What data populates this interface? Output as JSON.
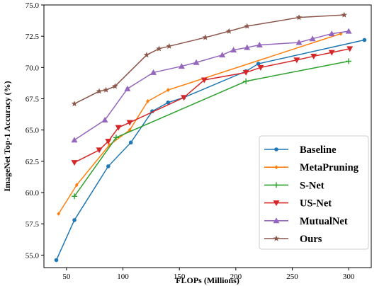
{
  "chart_data": {
    "type": "line",
    "xlabel": "FLOPs (Millions)",
    "ylabel": "ImageNet Top-1 Accuracy (%)",
    "xlim": [
      30,
      320
    ],
    "ylim": [
      54.0,
      75.0
    ],
    "xticks": [
      50,
      100,
      150,
      200,
      250,
      300
    ],
    "yticks": [
      55.0,
      57.5,
      60.0,
      62.5,
      65.0,
      67.5,
      70.0,
      72.5,
      75.0
    ],
    "xtick_labels": [
      "50",
      "100",
      "150",
      "200",
      "250",
      "300"
    ],
    "ytick_labels": [
      "55.0",
      "57.5",
      "60.0",
      "62.5",
      "65.0",
      "67.5",
      "70.0",
      "72.5",
      "75.0"
    ],
    "legend_position": "lower-right",
    "grid": false,
    "series": [
      {
        "name": "Baseline",
        "color": "#1f77b4",
        "marker": "circle",
        "x": [
          41,
          57,
          87,
          107,
          126,
          140,
          154,
          209,
          220,
          314
        ],
        "y": [
          54.6,
          57.8,
          62.1,
          64.0,
          66.5,
          67.2,
          67.6,
          69.7,
          70.3,
          72.2
        ]
      },
      {
        "name": "MetaPruning",
        "color": "#ff7f0e",
        "marker": "diamond",
        "x": [
          43,
          59,
          88,
          106,
          122,
          140,
          293
        ],
        "y": [
          58.3,
          60.6,
          63.8,
          65.0,
          67.3,
          68.2,
          72.7
        ]
      },
      {
        "name": "S-Net",
        "color": "#2ca02c",
        "marker": "plus",
        "x": [
          57,
          94,
          209,
          300
        ],
        "y": [
          59.7,
          64.4,
          68.9,
          70.5
        ]
      },
      {
        "name": "US-Net",
        "color": "#d62728",
        "marker": "triangle-down",
        "x": [
          57,
          79,
          87,
          96,
          106,
          154,
          172,
          209,
          222,
          254,
          269,
          285,
          301
        ],
        "y": [
          62.4,
          63.4,
          64.1,
          65.2,
          65.6,
          67.6,
          69.0,
          69.6,
          70.0,
          70.6,
          70.9,
          71.2,
          71.5
        ]
      },
      {
        "name": "MutualNet",
        "color": "#9467bd",
        "marker": "triangle-up",
        "x": [
          57,
          84,
          104,
          127,
          152,
          165,
          188,
          198,
          210,
          221,
          256,
          268,
          285,
          300
        ],
        "y": [
          64.2,
          65.8,
          68.3,
          69.6,
          70.1,
          70.4,
          71.0,
          71.4,
          71.6,
          71.8,
          72.0,
          72.3,
          72.7,
          72.9
        ]
      },
      {
        "name": "Ours",
        "color": "#8c564b",
        "marker": "star",
        "x": [
          57,
          79,
          85,
          93,
          121,
          132,
          141,
          173,
          194,
          210,
          256,
          296
        ],
        "y": [
          67.1,
          68.1,
          68.2,
          68.5,
          71.0,
          71.5,
          71.7,
          72.4,
          72.9,
          73.3,
          74.0,
          74.2
        ]
      }
    ]
  }
}
